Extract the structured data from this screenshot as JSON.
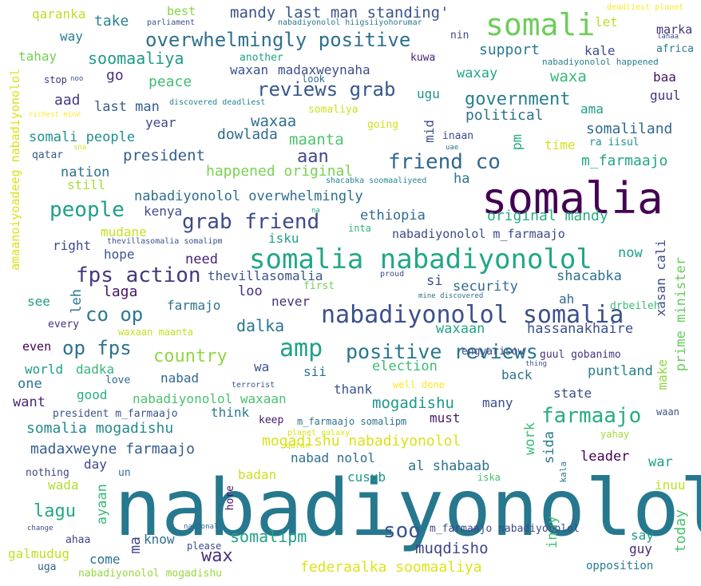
{
  "words": [
    {
      "text": "nabadiyonolol",
      "color": "#26788e"
    },
    {
      "text": "somalia",
      "color": "#440154"
    },
    {
      "text": "somali",
      "color": "#6ccd5a"
    },
    {
      "text": "somalia nabadiyonolol",
      "color": "#22a785"
    },
    {
      "text": "nabadiyonolol somalia",
      "color": "#3b518b"
    },
    {
      "text": "amp",
      "color": "#1fa188"
    },
    {
      "text": "positive reviews",
      "color": "#2a778e"
    },
    {
      "text": "overwhelmingly positive",
      "color": "#2d708e"
    },
    {
      "text": "reviews grab",
      "color": "#38588c"
    },
    {
      "text": "friend co",
      "color": "#31688e"
    },
    {
      "text": "grab friend",
      "color": "#3e4a89"
    },
    {
      "text": "fps action",
      "color": "#453781"
    },
    {
      "text": "people",
      "color": "#1f9e89"
    },
    {
      "text": "op fps",
      "color": "#2c738e"
    },
    {
      "text": "co op",
      "color": "#2a788e"
    },
    {
      "text": "farmaajo",
      "color": "#25ac82"
    },
    {
      "text": "soo",
      "color": "#39568c"
    },
    {
      "text": "country",
      "color": "#8fd744"
    },
    {
      "text": "government",
      "color": "#277f8e"
    },
    {
      "text": "dalka",
      "color": "#2a768e"
    },
    {
      "text": "aan",
      "color": "#3f4889"
    },
    {
      "text": "wax",
      "color": "#46307e"
    },
    {
      "text": "lagu",
      "color": "#22a884"
    },
    {
      "text": "somalipm",
      "color": "#20a386"
    },
    {
      "text": "muqdisho",
      "color": "#404588"
    },
    {
      "text": "soomaaliya",
      "color": "#1f9a8a"
    },
    {
      "text": "mandy last man standing'",
      "color": "#3a538b"
    },
    {
      "text": "somalia mogadishu",
      "color": "#228b8d"
    },
    {
      "text": "madaxweyne farmaajo",
      "color": "#365d8d"
    },
    {
      "text": "mogadishu nabadiyonolol",
      "color": "#d8e219"
    },
    {
      "text": "federaalka soomaaliya",
      "color": "#dde318"
    },
    {
      "text": "nabadiyonolol waxaan",
      "color": "#4ac16d"
    },
    {
      "text": "mogadishu",
      "color": "#1f988b"
    },
    {
      "text": "nabadiyonolol overwhelmingly",
      "color": "#2e6d8e"
    },
    {
      "text": "happened original",
      "color": "#7ad151"
    },
    {
      "text": "original mandy",
      "color": "#27ad81"
    },
    {
      "text": "nabadiyonolol m_farmaajo",
      "color": "#3e4989"
    },
    {
      "text": "waxaa",
      "color": "#2e6f8e"
    },
    {
      "text": "maanta",
      "color": "#4ec36b"
    },
    {
      "text": "president",
      "color": "#355e8d"
    },
    {
      "text": "somali people",
      "color": "#21918c"
    },
    {
      "text": "dowlada",
      "color": "#2f6b8e"
    },
    {
      "text": "last man",
      "color": "#365c8d"
    },
    {
      "text": "waxa",
      "color": "#35b779"
    },
    {
      "text": "waxay",
      "color": "#22a884"
    },
    {
      "text": "support",
      "color": "#297b8e"
    },
    {
      "text": "somaliland",
      "color": "#31688e"
    },
    {
      "text": "political",
      "color": "#2d718e"
    },
    {
      "text": "m_farmaajo",
      "color": "#21a685"
    },
    {
      "text": "ethiopia",
      "color": "#30698e"
    },
    {
      "text": "kenya",
      "color": "#3d4d8a"
    },
    {
      "text": "nation",
      "color": "#2b748e"
    },
    {
      "text": "isku",
      "color": "#1fa088"
    },
    {
      "text": "need",
      "color": "#482173"
    },
    {
      "text": "thevillasomalia",
      "color": "#3b528b"
    },
    {
      "text": "laga",
      "color": "#471365"
    },
    {
      "text": "security",
      "color": "#2f6c8e"
    },
    {
      "text": "shacabka",
      "color": "#2d718e"
    },
    {
      "text": "hassanakhaire",
      "color": "#3c4f8a"
    },
    {
      "text": "waxaan",
      "color": "#21a685"
    },
    {
      "text": "never",
      "color": "#472f7d"
    },
    {
      "text": "farmajo",
      "color": "#2c738e"
    },
    {
      "text": "now",
      "color": "#1f9e89"
    },
    {
      "text": "loo",
      "color": "#472d7b"
    },
    {
      "text": "leh",
      "color": "#2a778e"
    },
    {
      "text": "election",
      "color": "#3bbb75"
    },
    {
      "text": "puntland",
      "color": "#277f8e"
    },
    {
      "text": "nabad",
      "color": "#31688e"
    },
    {
      "text": "dadka",
      "color": "#34b679"
    },
    {
      "text": "world",
      "color": "#1f9e89"
    },
    {
      "text": "one",
      "color": "#2a768e"
    },
    {
      "text": "want",
      "color": "#482878"
    },
    {
      "text": "good",
      "color": "#29af7f"
    },
    {
      "text": "think",
      "color": "#297a8e"
    },
    {
      "text": "thank",
      "color": "#3a548c"
    },
    {
      "text": "must",
      "color": "#481a6c"
    },
    {
      "text": "many",
      "color": "#3c4f8a"
    },
    {
      "text": "state",
      "color": "#3e4a89"
    },
    {
      "text": "back",
      "color": "#2c728e"
    },
    {
      "text": "work",
      "color": "#3bbb75"
    },
    {
      "text": "sida",
      "color": "#2a788e"
    },
    {
      "text": "nabad nolol",
      "color": "#2e6e8e"
    },
    {
      "text": "al shabaab",
      "color": "#2c738e"
    },
    {
      "text": "cusub",
      "color": "#1f968b"
    },
    {
      "text": "leader",
      "color": "#440154"
    },
    {
      "text": "war",
      "color": "#1fa088"
    },
    {
      "text": "inuu",
      "color": "#bddf26"
    },
    {
      "text": "badan",
      "color": "#cae11f"
    },
    {
      "text": "wada",
      "color": "#b0dd2f"
    },
    {
      "text": "day",
      "color": "#3f4889"
    },
    {
      "text": "ayaan",
      "color": "#38b977"
    },
    {
      "text": "know",
      "color": "#2e6e8e"
    },
    {
      "text": "come",
      "color": "#2d718e"
    },
    {
      "text": "ma",
      "color": "#3f4788"
    },
    {
      "text": "galmudug",
      "color": "#c2df23"
    },
    {
      "text": "uga",
      "color": "#35608d"
    },
    {
      "text": "say",
      "color": "#1f9a8a"
    },
    {
      "text": "guy",
      "color": "#482979"
    },
    {
      "text": "today",
      "color": "#4ac16d"
    },
    {
      "text": "inay",
      "color": "#44bf70"
    },
    {
      "text": "opposition",
      "color": "#287d8e"
    },
    {
      "text": "prime minister",
      "color": "#67cc5c"
    },
    {
      "text": "xasan cali",
      "color": "#3e4c8a"
    },
    {
      "text": "drbeileh",
      "color": "#3bbb75"
    },
    {
      "text": "ah",
      "color": "#31668e"
    },
    {
      "text": "si",
      "color": "#3f4889"
    },
    {
      "text": "see",
      "color": "#1fa088"
    },
    {
      "text": "hope",
      "color": "#3a548c"
    },
    {
      "text": "right",
      "color": "#3d4d8a"
    },
    {
      "text": "mudane",
      "color": "#c8e020"
    },
    {
      "text": "still",
      "color": "#a5db36"
    },
    {
      "text": "ha",
      "color": "#2a768e"
    },
    {
      "text": "pm",
      "color": "#2ab07f"
    },
    {
      "text": "time",
      "color": "#d2e21b"
    },
    {
      "text": "mid",
      "color": "#3b528b"
    },
    {
      "text": "year",
      "color": "#3e4989"
    },
    {
      "text": "aad",
      "color": "#453882"
    },
    {
      "text": "go",
      "color": "#46327e"
    },
    {
      "text": "peace",
      "color": "#40bd72"
    },
    {
      "text": "tahay",
      "color": "#73d056"
    },
    {
      "text": "way",
      "color": "#287c8e"
    },
    {
      "text": "take",
      "color": "#26828e"
    },
    {
      "text": "madaxweynaha",
      "color": "#3d4e8a"
    },
    {
      "text": "waxan",
      "color": "#3a538b"
    },
    {
      "text": "ugu",
      "color": "#20928c"
    },
    {
      "text": "kale",
      "color": "#3c4f8a"
    },
    {
      "text": "marka",
      "color": "#46337f"
    },
    {
      "text": "africa",
      "color": "#2a778e"
    },
    {
      "text": "baa",
      "color": "#471365"
    },
    {
      "text": "guul",
      "color": "#46307e"
    },
    {
      "text": "ama",
      "color": "#1f9e89"
    },
    {
      "text": "let",
      "color": "#b5de2b"
    },
    {
      "text": "somaliya",
      "color": "#cae11f"
    },
    {
      "text": "kuwa",
      "color": "#482677"
    },
    {
      "text": "sii",
      "color": "#2d718e"
    },
    {
      "text": "wa",
      "color": "#3a548c"
    },
    {
      "text": "make",
      "color": "#8fd744"
    },
    {
      "text": "even",
      "color": "#440154"
    },
    {
      "text": "keep",
      "color": "#481a6c"
    },
    {
      "text": "president m_farmaajo",
      "color": "#3b528b"
    },
    {
      "text": "m_farmaajo somalipm",
      "color": "#2c738e"
    },
    {
      "text": "m_farmaajo nabadiyonolol",
      "color": "#3e4a89"
    },
    {
      "text": "nabadiyonolol mogadishu",
      "color": "#95d840"
    },
    {
      "text": "guul gobanimo",
      "color": "#46337f"
    },
    {
      "text": "engyarisow",
      "color": "#3e4a89"
    },
    {
      "text": "amaanoiyoadeeg nabadiyonolol",
      "color": "#d8e219"
    },
    {
      "text": "nothing",
      "color": "#3f4788"
    },
    {
      "text": "un",
      "color": "#2d718e"
    },
    {
      "text": "hore",
      "color": "#471063"
    },
    {
      "text": "please",
      "color": "#3e4a89"
    },
    {
      "text": "ahaa",
      "color": "#3f4788"
    },
    {
      "text": "qaranka",
      "color": "#bddf26"
    },
    {
      "text": "best",
      "color": "#84d44b"
    },
    {
      "text": "nin",
      "color": "#3e4a89"
    },
    {
      "text": "another",
      "color": "#20a386"
    },
    {
      "text": "stop",
      "color": "#46327e"
    },
    {
      "text": "look",
      "color": "#2e6d8e"
    },
    {
      "text": "going",
      "color": "#d0e11c"
    },
    {
      "text": "qatar",
      "color": "#39568c"
    },
    {
      "text": "inaan",
      "color": "#3e4989"
    },
    {
      "text": "ra iisul",
      "color": "#21918c"
    },
    {
      "text": "every",
      "color": "#46307e"
    },
    {
      "text": "first",
      "color": "#75d054"
    },
    {
      "text": "love",
      "color": "#31688e"
    },
    {
      "text": "well done",
      "color": "#fde725"
    },
    {
      "text": "waan",
      "color": "#3a548c"
    },
    {
      "text": "yahay",
      "color": "#a0da39"
    },
    {
      "text": "iska",
      "color": "#4ac16d"
    },
    {
      "text": "kala",
      "color": "#2c728e"
    },
    {
      "text": "waxaan maanta",
      "color": "#c2df23"
    },
    {
      "text": "parliament",
      "color": "#3b528b"
    },
    {
      "text": "nabadiyonolol hiigsiiyohorumar",
      "color": "#2a788e"
    },
    {
      "text": "deadliest planet",
      "color": "#fde725"
    },
    {
      "text": "lahaa",
      "color": "#3e4c8a"
    },
    {
      "text": "nabadiyonolol happened",
      "color": "#287d8e"
    },
    {
      "text": "noo",
      "color": "#3b528b"
    },
    {
      "text": "discovered deadliest",
      "color": "#25848e"
    },
    {
      "text": "richest mine",
      "color": "#fde725"
    },
    {
      "text": "sna",
      "color": "#d8e219"
    },
    {
      "text": "uae",
      "color": "#2c738e"
    },
    {
      "text": "shacabka soomaaliyeed",
      "color": "#24878e"
    },
    {
      "text": "na",
      "color": "#25ac82"
    },
    {
      "text": "inta",
      "color": "#31b57b"
    },
    {
      "text": "thevillasomalia somalipm",
      "color": "#3b528b"
    },
    {
      "text": "mine discovered",
      "color": "#2e6f8e"
    },
    {
      "text": "proud",
      "color": "#3e4a89"
    },
    {
      "text": "terrorist",
      "color": "#3a548c"
    },
    {
      "text": "thing",
      "color": "#3b528b"
    },
    {
      "text": "planet galaxy",
      "color": "#d8e219"
    },
    {
      "text": "qaran",
      "color": "#dde318"
    },
    {
      "text": "change",
      "color": "#3e4a89"
    },
    {
      "text": "national",
      "color": "#31688e"
    }
  ]
}
